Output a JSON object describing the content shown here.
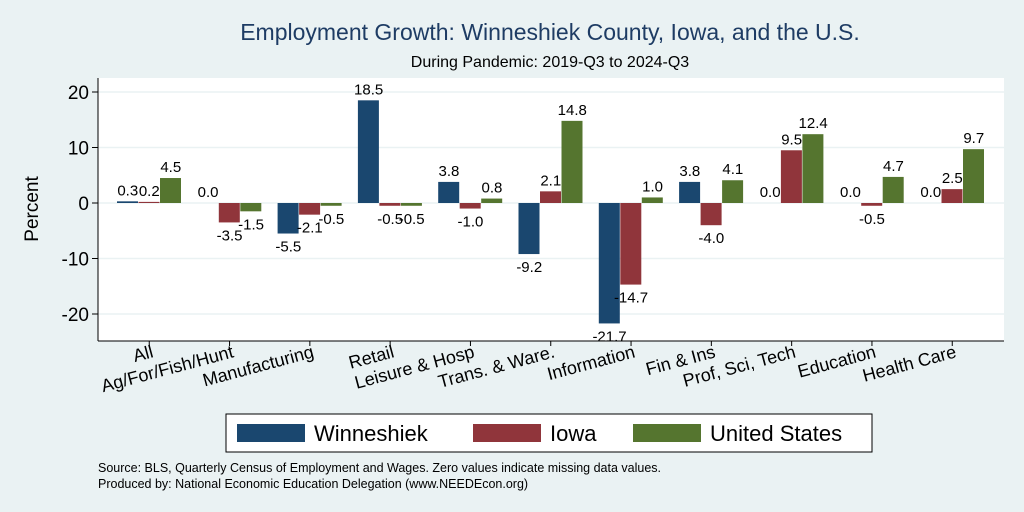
{
  "chart_data": {
    "type": "bar",
    "title": "Employment Growth: Winneshiek County, Iowa, and the U.S.",
    "subtitle": "During Pandemic: 2019-Q3 to 2024-Q3",
    "ylabel": "Percent",
    "xlabel": "",
    "ylim": [
      -24,
      24
    ],
    "yticks": [
      20,
      10,
      0,
      -10,
      -20
    ],
    "ytick_labels": [
      "20",
      "10",
      "0",
      "-10",
      "-20"
    ],
    "grid": true,
    "legend_position": "bottom",
    "categories": [
      "All",
      "Ag/For/Fish/Hunt",
      "Manufacturing",
      "Retail",
      "Leisure & Hosp",
      "Trans. & Ware.",
      "Information",
      "Fin & Ins",
      "Prof, Sci, Tech",
      "Education",
      "Health Care"
    ],
    "series": [
      {
        "name": "Winneshiek",
        "color": "#1a476f",
        "values": [
          0.3,
          0.0,
          -5.5,
          18.5,
          3.8,
          -9.2,
          -21.7,
          3.8,
          0.0,
          0.0,
          0.0
        ]
      },
      {
        "name": "Iowa",
        "color": "#90353b",
        "values": [
          0.2,
          -3.5,
          -2.1,
          -0.5,
          -1.0,
          2.1,
          -14.7,
          -4.0,
          9.5,
          -0.5,
          2.5
        ]
      },
      {
        "name": "United States",
        "color": "#55752f",
        "values": [
          4.5,
          -1.5,
          -0.5,
          -0.5,
          0.8,
          14.8,
          1.0,
          4.1,
          12.4,
          4.7,
          9.7
        ]
      }
    ],
    "data_labels": [
      [
        "0.3",
        "0.0",
        "-5.5",
        "18.5",
        "3.8",
        "-9.2",
        "-21.7",
        "3.8",
        "0.0",
        "0.0",
        "0.0"
      ],
      [
        "0.2",
        "-3.5",
        "-2.1",
        "-0.5",
        "-1.0",
        "2.1",
        "-14.7",
        "-4.0",
        "9.5",
        "-0.5",
        "2.5"
      ],
      [
        "4.5",
        "-1.5",
        "-0.5",
        "-0.5",
        "0.8",
        "14.8",
        "1.0",
        "4.1",
        "12.4",
        "4.7",
        "9.7"
      ]
    ]
  },
  "notes": {
    "source": "Source: BLS, Quarterly Census of Employment and Wages. Zero values indicate missing data values.",
    "produced_by": "Produced by: National Economic Education Delegation (www.NEEDEcon.org)"
  }
}
